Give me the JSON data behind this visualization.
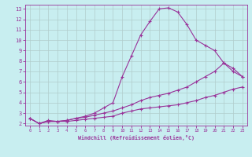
{
  "xlabel": "Windchill (Refroidissement éolien,°C)",
  "bg_color": "#c8eef0",
  "grid_color": "#b0cccc",
  "line_color": "#993399",
  "xlim": [
    -0.5,
    23.5
  ],
  "ylim": [
    1.8,
    13.4
  ],
  "xticks": [
    0,
    1,
    2,
    3,
    4,
    5,
    6,
    7,
    8,
    9,
    10,
    11,
    12,
    13,
    14,
    15,
    16,
    17,
    18,
    19,
    20,
    21,
    22,
    23
  ],
  "yticks": [
    2,
    3,
    4,
    5,
    6,
    7,
    8,
    9,
    10,
    11,
    12,
    13
  ],
  "curve1_x": [
    0,
    1,
    2,
    3,
    4,
    5,
    6,
    7,
    8,
    9,
    10,
    11,
    12,
    13,
    14,
    15,
    16,
    17,
    18,
    19,
    20,
    21,
    22,
    23
  ],
  "curve1_y": [
    2.5,
    2.0,
    2.2,
    2.2,
    2.2,
    2.3,
    2.4,
    2.5,
    2.6,
    2.7,
    3.0,
    3.2,
    3.4,
    3.5,
    3.6,
    3.7,
    3.8,
    4.0,
    4.2,
    4.5,
    4.7,
    5.0,
    5.3,
    5.5
  ],
  "curve2_x": [
    0,
    1,
    2,
    3,
    4,
    5,
    6,
    7,
    8,
    9,
    10,
    11,
    12,
    13,
    14,
    15,
    16,
    17,
    18,
    19,
    20,
    21,
    22,
    23
  ],
  "curve2_y": [
    2.5,
    2.0,
    2.3,
    2.2,
    2.3,
    2.5,
    2.6,
    2.8,
    3.0,
    3.2,
    3.5,
    3.8,
    4.2,
    4.5,
    4.7,
    4.9,
    5.2,
    5.5,
    6.0,
    6.5,
    7.0,
    7.8,
    7.3,
    6.5
  ],
  "curve3_x": [
    0,
    1,
    2,
    3,
    4,
    5,
    6,
    7,
    8,
    9,
    10,
    11,
    12,
    13,
    14,
    15,
    16,
    17,
    18,
    19,
    20,
    21,
    22,
    23
  ],
  "curve3_y": [
    2.5,
    2.0,
    2.2,
    2.2,
    2.3,
    2.5,
    2.7,
    3.0,
    3.5,
    4.0,
    6.5,
    8.5,
    10.5,
    11.8,
    13.0,
    13.1,
    12.7,
    11.5,
    10.0,
    9.5,
    9.0,
    7.8,
    7.0,
    6.5
  ]
}
